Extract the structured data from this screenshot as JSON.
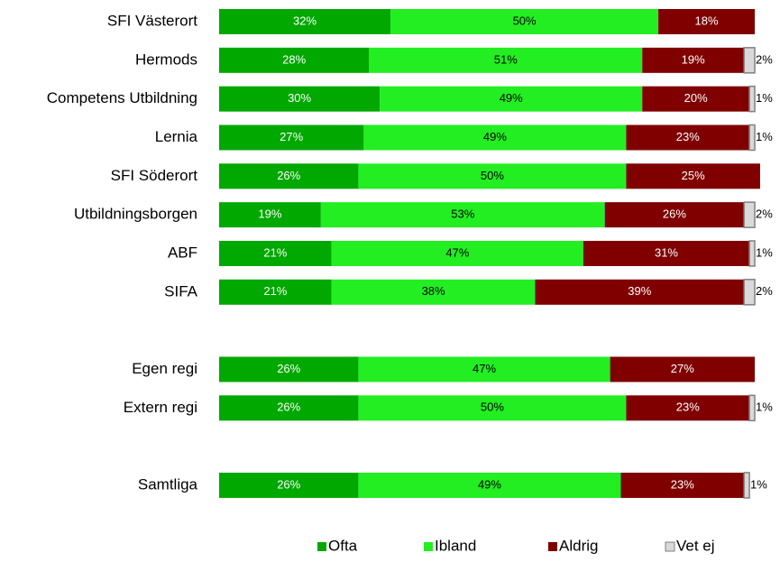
{
  "chart_data": {
    "type": "stacked-bar-horizontal",
    "categories": [
      "SFI Västerort",
      "Hermods",
      "Competens Utbildning",
      "Lernia",
      "SFI Söderort",
      "Utbildningsborgen",
      "ABF",
      "SIFA",
      null,
      "Egen regi",
      "Extern regi",
      null,
      "Samtliga"
    ],
    "series": [
      {
        "name": "Ofta",
        "color": "#00a800",
        "label_color": "#ffffff",
        "values": [
          32,
          28,
          30,
          27,
          26,
          19,
          21,
          21,
          null,
          26,
          26,
          null,
          26
        ],
        "value_labels": [
          "32%",
          "28%",
          "30%",
          "27%",
          "26%",
          "19%",
          "21%",
          "21%",
          null,
          "26%",
          "26%",
          null,
          "26%"
        ]
      },
      {
        "name": "Ibland",
        "color": "#22ee22",
        "label_color": "#000000",
        "values": [
          50,
          51,
          49,
          49,
          50,
          53,
          47,
          38,
          null,
          47,
          50,
          null,
          49
        ],
        "value_labels": [
          "50%",
          "51%",
          "49%",
          "49%",
          "50%",
          "53%",
          "47%",
          "38%",
          null,
          "47%",
          "50%",
          null,
          "49%"
        ]
      },
      {
        "name": "Aldrig",
        "color": "#800000",
        "label_color": "#ffffff",
        "values": [
          18,
          19,
          20,
          23,
          25,
          26,
          31,
          39,
          null,
          27,
          23,
          null,
          23
        ],
        "value_labels": [
          "18%",
          "19%",
          "20%",
          "23%",
          "25%",
          "26%",
          "31%",
          "39%",
          null,
          "27%",
          "23%",
          null,
          "23%"
        ]
      },
      {
        "name": "Vet ej",
        "color": "#d9d9d9",
        "label_color": "#000000",
        "labels_outside": true,
        "values": [
          null,
          2,
          1,
          1,
          null,
          2,
          1,
          2,
          null,
          null,
          1,
          null,
          1
        ],
        "value_labels": [
          null,
          "2%",
          "1%",
          "1%",
          null,
          "2%",
          "1%",
          "2%",
          null,
          null,
          "1%",
          null,
          "1%"
        ]
      }
    ],
    "legend": "bottom"
  }
}
